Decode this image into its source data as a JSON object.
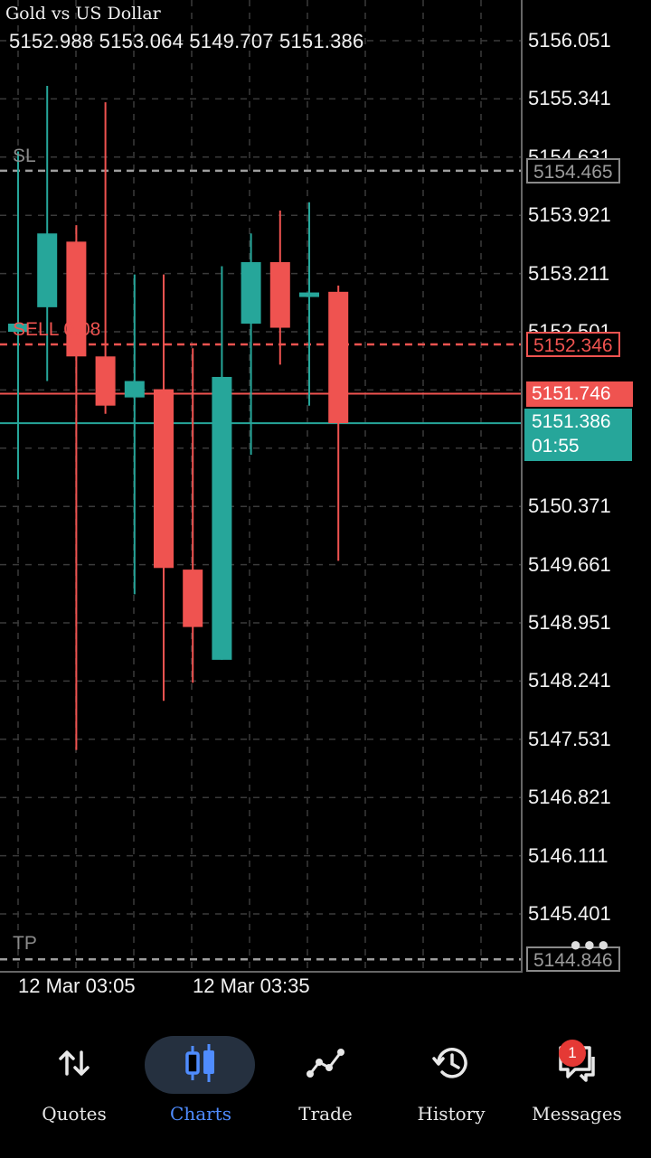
{
  "header": {
    "symbol": "Gold vs US Dollar",
    "ohlc": "5152.988 5153.064 5149.707 5151.386"
  },
  "colors": {
    "bull": "#26a69a",
    "bear": "#ef5350",
    "grid": "#3a3a3a",
    "sl_tp": "#9e9e9e"
  },
  "price_axis": [
    "5156.051",
    "5155.341",
    "5154.631",
    "5153.921",
    "5153.211",
    "5152.501",
    "5150.371",
    "5149.661",
    "5148.951",
    "5148.241",
    "5147.531",
    "5146.821",
    "5146.111",
    "5145.401"
  ],
  "lines": {
    "sl": {
      "label": "SL",
      "price": "5154.465"
    },
    "sell": {
      "label": "SELL 0.08",
      "price": "5152.346"
    },
    "tp": {
      "label": "TP",
      "price": "5144.846"
    },
    "ask": {
      "price": "5151.746"
    },
    "bid": {
      "price": "5151.386",
      "countdown": "01:55"
    }
  },
  "time_axis": [
    "12 Mar 03:05",
    "12 Mar 03:35"
  ],
  "chart_data": {
    "type": "candlestick",
    "title": "Gold vs US Dollar",
    "ylim": [
      5144.846,
      5156.051
    ],
    "candles": [
      {
        "open": 5152.5,
        "high": 5154.7,
        "low": 5150.7,
        "close": 5152.6
      },
      {
        "open": 5152.8,
        "high": 5155.5,
        "low": 5151.9,
        "close": 5153.7
      },
      {
        "open": 5153.6,
        "high": 5153.8,
        "low": 5147.4,
        "close": 5152.2
      },
      {
        "open": 5152.2,
        "high": 5155.3,
        "low": 5151.5,
        "close": 5151.6
      },
      {
        "open": 5151.7,
        "high": 5153.2,
        "low": 5149.3,
        "close": 5151.9
      },
      {
        "open": 5151.8,
        "high": 5153.2,
        "low": 5148.0,
        "close": 5149.62
      },
      {
        "open": 5149.6,
        "high": 5152.3,
        "low": 5148.22,
        "close": 5148.9
      },
      {
        "open": 5148.5,
        "high": 5153.3,
        "low": 5148.5,
        "close": 5151.95
      },
      {
        "open": 5152.6,
        "high": 5153.7,
        "low": 5151.0,
        "close": 5153.35
      },
      {
        "open": 5153.35,
        "high": 5153.98,
        "low": 5152.1,
        "close": 5152.55
      },
      {
        "open": 5152.93,
        "high": 5154.08,
        "low": 5151.6,
        "close": 5152.98
      },
      {
        "open": 5152.988,
        "high": 5153.064,
        "low": 5149.707,
        "close": 5151.386
      }
    ]
  },
  "nav": [
    {
      "label": "Quotes",
      "icon": "quotes-arrows-icon",
      "active": false
    },
    {
      "label": "Charts",
      "icon": "candles-icon",
      "active": true
    },
    {
      "label": "Trade",
      "icon": "trade-line-icon",
      "active": false
    },
    {
      "label": "History",
      "icon": "history-clock-icon",
      "active": false
    },
    {
      "label": "Messages",
      "icon": "messages-icon",
      "active": false,
      "badge": "1"
    }
  ]
}
